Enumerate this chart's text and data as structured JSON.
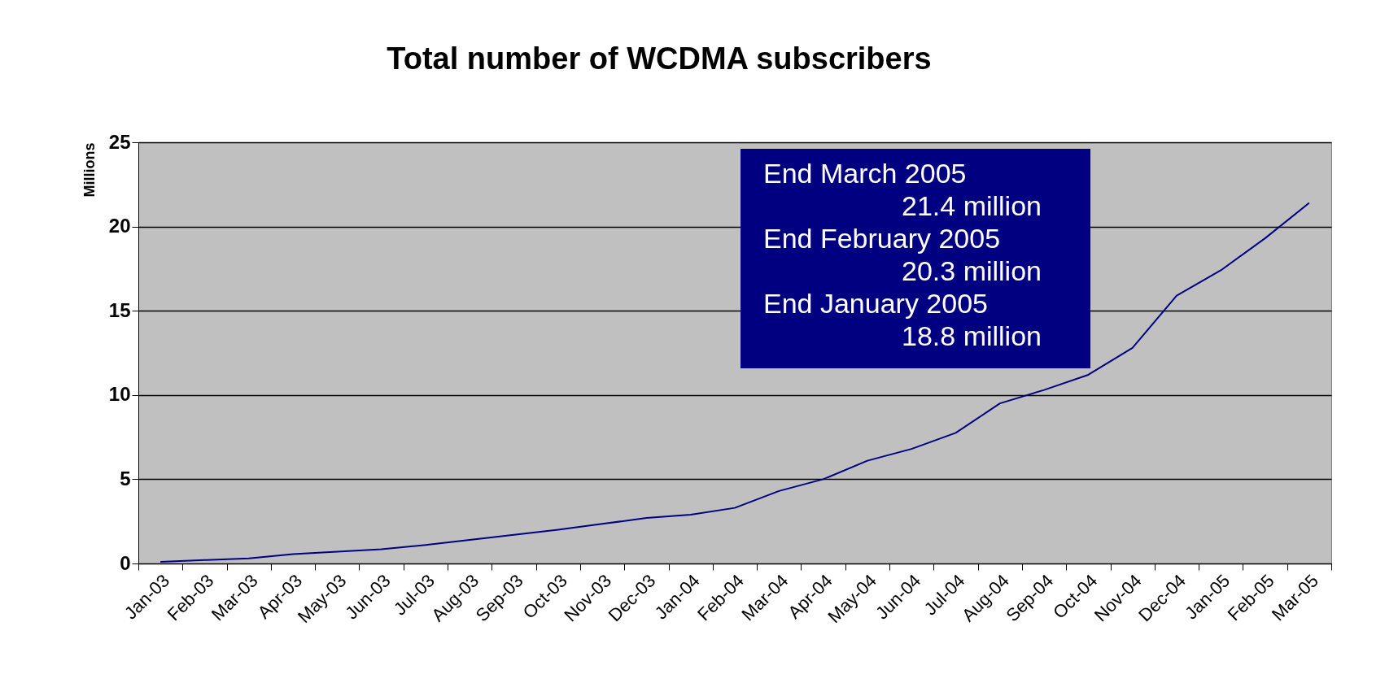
{
  "chart_data": {
    "type": "line",
    "title": "Total number of WCDMA subscribers",
    "ylabel": "Millions",
    "categories": [
      "Jan-03",
      "Feb-03",
      "Mar-03",
      "Apr-03",
      "May-03",
      "Jun-03",
      "Jul-03",
      "Aug-03",
      "Sep-03",
      "Oct-03",
      "Nov-03",
      "Dec-03",
      "Jan-04",
      "Feb-04",
      "Mar-04",
      "Apr-04",
      "May-04",
      "Jun-04",
      "Jul-04",
      "Aug-04",
      "Sep-04",
      "Oct-04",
      "Nov-04",
      "Dec-04",
      "Jan-05",
      "Feb-05",
      "Mar-05"
    ],
    "series": [
      {
        "color": "#000080",
        "values": [
          0.1,
          0.2,
          0.3,
          0.55,
          0.7,
          0.85,
          1.1,
          1.4,
          1.7,
          2.0,
          2.35,
          2.7,
          2.9,
          3.3,
          4.3,
          5.0,
          6.1,
          6.8,
          7.75,
          9.5,
          10.3,
          11.2,
          12.8,
          15.9,
          17.4,
          19.3,
          21.4
        ]
      }
    ],
    "ylim": [
      0,
      25
    ],
    "yticks": [
      0,
      5,
      10,
      15,
      20,
      25
    ],
    "grid": "y",
    "legend": false,
    "marker": "none",
    "line_style": "solid",
    "annotations": [
      "End March 2005",
      "21.4 million",
      "End February 2005",
      "20.3 million",
      "End January 2005",
      "18.8 million"
    ]
  }
}
